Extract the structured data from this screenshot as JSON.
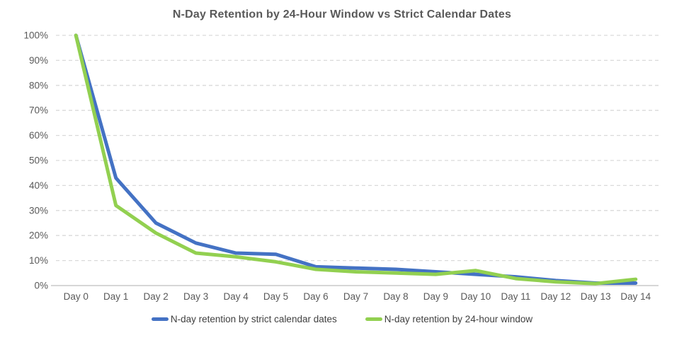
{
  "chart_data": {
    "type": "line",
    "title": "N-Day Retention by 24-Hour Window vs Strict Calendar Dates",
    "categories": [
      "Day 0",
      "Day 1",
      "Day 2",
      "Day 3",
      "Day 4",
      "Day 5",
      "Day 6",
      "Day 7",
      "Day 8",
      "Day 9",
      "Day 10",
      "Day 11",
      "Day 12",
      "Day 13",
      "Day 14"
    ],
    "series": [
      {
        "name": "N-day retention by strict calendar dates",
        "color": "#4472C4",
        "values": [
          100,
          43,
          25,
          17,
          13,
          12.5,
          7.5,
          7,
          6.5,
          5.5,
          4.5,
          3.5,
          2,
          1,
          1
        ]
      },
      {
        "name": "N-day retention by 24-hour window",
        "color": "#92D050",
        "values": [
          100,
          32,
          21,
          13,
          11.5,
          9.5,
          6.5,
          5.5,
          5,
          4.5,
          6,
          2.8,
          1.5,
          0.8,
          2.5
        ]
      }
    ],
    "y_axis": {
      "tick_labels": [
        "0%",
        "10%",
        "20%",
        "30%",
        "40%",
        "50%",
        "60%",
        "70%",
        "80%",
        "90%",
        "100%"
      ],
      "min": 0,
      "max": 100,
      "step": 10
    },
    "grid": "horizontal-dashed",
    "legend_position": "bottom",
    "colors": {
      "grid_line": "#D9D9D9",
      "axis_line": "#D6D6D6",
      "tick_text": "#595959",
      "title_text": "#595959",
      "background": "#FFFFFF"
    }
  }
}
